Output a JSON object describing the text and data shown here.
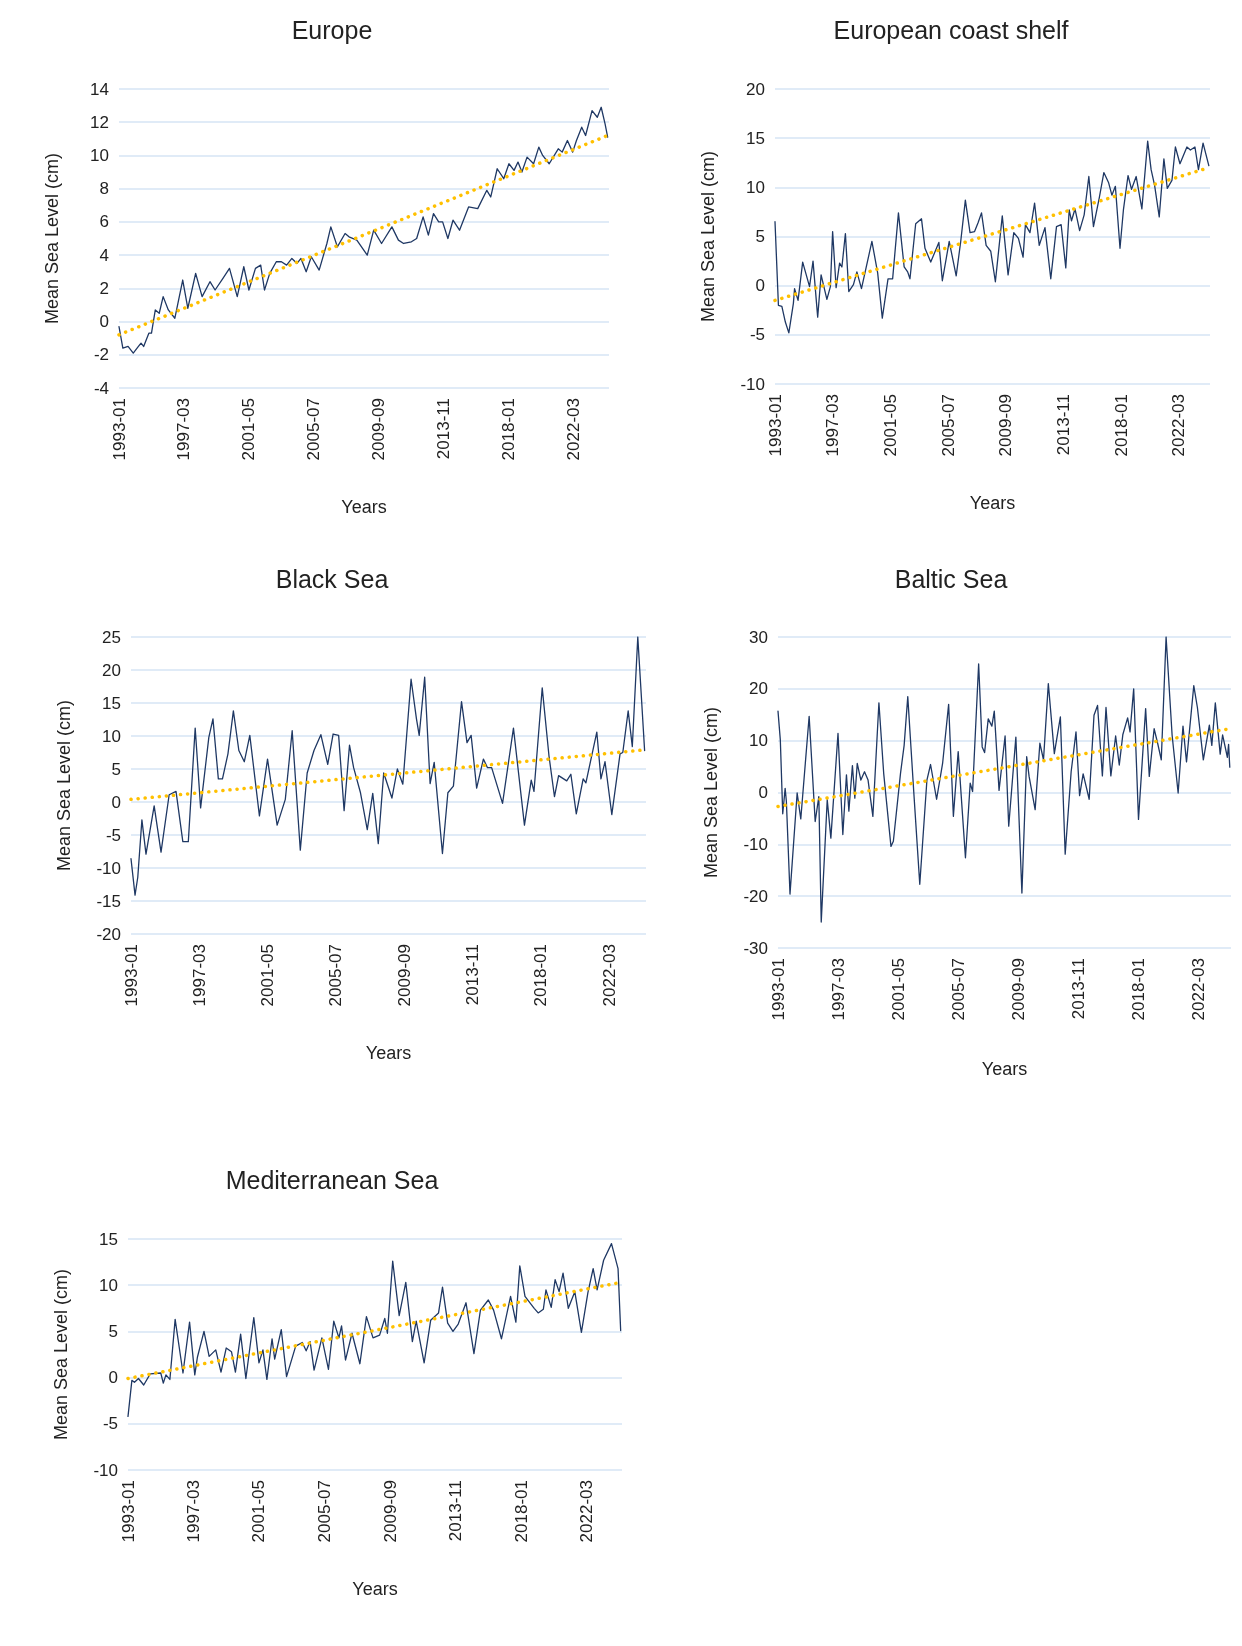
{
  "chart_data": [
    {
      "type": "line",
      "title": "Europe",
      "xlabel": "Years",
      "ylabel": "Mean Sea Level (cm)",
      "marker": "none",
      "grid": "y",
      "xlim": [
        "1993-01",
        "2024-06"
      ],
      "xticks": [
        "1993-01",
        "1997-03",
        "2001-05",
        "2005-07",
        "2009-09",
        "2013-11",
        "2018-01",
        "2022-03"
      ],
      "ylim": [
        -4,
        14
      ],
      "yticks": [
        -4,
        -2,
        0,
        2,
        4,
        6,
        8,
        10,
        12,
        14
      ],
      "series": [
        {
          "color": "#1f3864",
          "line_style": "solid",
          "x": [
            "1993-01",
            "1993-04",
            "1993-08",
            "1993-12",
            "1994-04",
            "1994-06",
            "1994-08",
            "1994-12",
            "1995-02",
            "1995-05",
            "1995-08",
            "1995-11",
            "1996-03",
            "1996-08",
            "1997-02",
            "1997-06",
            "1997-12",
            "1998-05",
            "1998-11",
            "1999-03",
            "1999-09",
            "2000-02",
            "2000-08",
            "2001-01",
            "2001-05",
            "2001-10",
            "2002-02",
            "2002-05",
            "2002-09",
            "2003-02",
            "2003-06",
            "2003-10",
            "2004-02",
            "2004-06",
            "2004-09",
            "2005-01",
            "2005-05",
            "2005-11",
            "2006-05",
            "2006-08",
            "2007-01",
            "2007-07",
            "2007-10",
            "2008-04",
            "2008-12",
            "2009-05",
            "2009-11",
            "2010-07",
            "2010-12",
            "2011-04",
            "2011-10",
            "2012-02",
            "2012-07",
            "2012-11",
            "2013-03",
            "2013-07",
            "2013-10",
            "2014-02",
            "2014-06",
            "2014-11",
            "2015-06",
            "2016-01",
            "2016-08",
            "2016-11",
            "2017-04",
            "2017-09",
            "2018-01",
            "2018-05",
            "2018-08",
            "2018-11",
            "2019-03",
            "2019-08",
            "2019-12",
            "2020-03",
            "2020-08",
            "2021-03",
            "2021-06",
            "2021-10",
            "2022-02",
            "2022-05",
            "2022-09",
            "2022-12",
            "2023-05",
            "2023-09",
            "2023-12",
            "2024-03",
            "2024-05"
          ],
          "values": [
            -0.3,
            -1.6,
            -1.5,
            -1.9,
            -1.5,
            -1.3,
            -1.5,
            -0.7,
            -0.7,
            0.7,
            0.5,
            1.5,
            0.7,
            0.2,
            2.5,
            0.8,
            2.9,
            1.5,
            2.4,
            1.9,
            2.6,
            3.2,
            1.5,
            3.3,
            1.9,
            3.2,
            3.4,
            1.9,
            2.9,
            3.6,
            3.6,
            3.4,
            3.8,
            3.5,
            3.8,
            3.0,
            3.9,
            3.1,
            4.7,
            5.7,
            4.5,
            5.3,
            5.1,
            4.9,
            4.0,
            5.5,
            4.7,
            5.7,
            4.9,
            4.7,
            4.8,
            5.0,
            6.3,
            5.2,
            6.5,
            6.0,
            6.0,
            5.0,
            6.1,
            5.5,
            6.9,
            6.8,
            7.9,
            7.5,
            9.2,
            8.6,
            9.5,
            9.1,
            9.6,
            9.0,
            9.9,
            9.5,
            10.5,
            10.0,
            9.5,
            10.4,
            10.2,
            10.9,
            10.2,
            10.9,
            11.7,
            11.2,
            12.7,
            12.3,
            12.9,
            11.9,
            11.1
          ]
        },
        {
          "color": "#ffc000",
          "line_style": "dotted",
          "x": [
            "1993-01",
            "2024-05"
          ],
          "values": [
            -0.8,
            11.2
          ]
        }
      ]
    },
    {
      "type": "line",
      "title": "European coast shelf",
      "xlabel": "Years",
      "ylabel": "Mean Sea Level (cm)",
      "marker": "none",
      "grid": "y",
      "xlim": [
        "1993-01",
        "2024-06"
      ],
      "xticks": [
        "1993-01",
        "1997-03",
        "2001-05",
        "2005-07",
        "2009-09",
        "2013-11",
        "2018-01",
        "2022-03"
      ],
      "ylim": [
        -10,
        20
      ],
      "yticks": [
        -10,
        -5,
        0,
        5,
        10,
        15,
        20
      ],
      "series": [
        {
          "color": "#1f3864",
          "line_style": "solid",
          "x": [
            "1993-01",
            "1993-04",
            "1993-07",
            "1993-10",
            "1994-01",
            "1994-05",
            "1994-06",
            "1994-09",
            "1995-01",
            "1995-07",
            "1995-10",
            "1996-02",
            "1996-05",
            "1996-10",
            "1997-01",
            "1997-03",
            "1997-06",
            "1997-09",
            "1997-11",
            "1998-02",
            "1998-05",
            "1998-09",
            "1998-12",
            "1999-04",
            "2000-01",
            "2000-06",
            "2000-10",
            "2001-03",
            "2001-07",
            "2001-12",
            "2002-05",
            "2002-08",
            "2002-10",
            "2003-03",
            "2003-08",
            "2003-11",
            "2004-04",
            "2004-11",
            "2005-02",
            "2005-08",
            "2006-02",
            "2006-06",
            "2006-10",
            "2007-02",
            "2007-06",
            "2007-09",
            "2007-12",
            "2008-04",
            "2008-08",
            "2008-12",
            "2009-06",
            "2009-11",
            "2010-04",
            "2010-08",
            "2010-12",
            "2011-02",
            "2011-06",
            "2011-10",
            "2012-02",
            "2012-07",
            "2012-12",
            "2013-05",
            "2013-09",
            "2014-01",
            "2014-04",
            "2014-06",
            "2014-09",
            "2015-01",
            "2015-05",
            "2015-09",
            "2016-01",
            "2016-06",
            "2016-10",
            "2017-02",
            "2017-05",
            "2017-08",
            "2017-12",
            "2018-03",
            "2018-07",
            "2018-10",
            "2019-02",
            "2019-07",
            "2019-12",
            "2020-03",
            "2020-06",
            "2020-10",
            "2021-02",
            "2021-05",
            "2021-09",
            "2021-12",
            "2022-04",
            "2022-10",
            "2023-01",
            "2023-05",
            "2023-08",
            "2023-12",
            "2024-05"
          ],
          "values": [
            6.5,
            -2.0,
            -2.1,
            -3.7,
            -4.8,
            -1.8,
            -0.3,
            -1.5,
            2.4,
            -0.1,
            2.5,
            -3.2,
            1.1,
            -1.4,
            -0.1,
            5.5,
            -0.2,
            2.3,
            1.9,
            5.3,
            -0.6,
            0.1,
            1.4,
            -0.3,
            4.5,
            1.3,
            -3.3,
            0.7,
            0.7,
            7.4,
            1.9,
            1.4,
            0.7,
            6.3,
            6.8,
            3.8,
            2.4,
            4.4,
            0.5,
            4.5,
            1.0,
            4.5,
            8.7,
            5.4,
            5.5,
            6.4,
            7.4,
            4.1,
            3.5,
            0.4,
            7.1,
            1.1,
            5.4,
            4.8,
            2.9,
            6.2,
            5.4,
            8.4,
            4.1,
            5.9,
            0.7,
            6.0,
            6.2,
            1.8,
            7.7,
            6.6,
            7.8,
            5.6,
            7.2,
            11.1,
            6.0,
            8.9,
            11.5,
            10.5,
            9.2,
            10.1,
            3.8,
            7.7,
            11.2,
            9.8,
            11.1,
            7.8,
            14.7,
            11.8,
            10.2,
            7.0,
            12.9,
            9.9,
            10.7,
            14.1,
            12.4,
            14.1,
            13.8,
            14.1,
            11.8,
            14.5,
            12.2
          ]
        },
        {
          "color": "#ffc000",
          "line_style": "dotted",
          "x": [
            "1993-01",
            "2024-05"
          ],
          "values": [
            -1.5,
            12.0
          ]
        }
      ]
    },
    {
      "type": "line",
      "title": "Black Sea",
      "xlabel": "Years",
      "ylabel": "Mean Sea Level (cm)",
      "marker": "none",
      "grid": "y",
      "xlim": [
        "1993-01",
        "2024-06"
      ],
      "xticks": [
        "1993-01",
        "1997-03",
        "2001-05",
        "2005-07",
        "2009-09",
        "2013-11",
        "2018-01",
        "2022-03"
      ],
      "ylim": [
        -20,
        25
      ],
      "yticks": [
        -20,
        -15,
        -10,
        -5,
        0,
        5,
        10,
        15,
        20,
        25
      ],
      "series": [
        {
          "color": "#1f3864",
          "line_style": "solid",
          "x": [
            "1993-01",
            "1993-04",
            "1993-06",
            "1993-09",
            "1993-12",
            "1994-06",
            "1994-11",
            "1995-05",
            "1995-10",
            "1996-03",
            "1996-07",
            "1996-12",
            "1997-04",
            "1997-10",
            "1998-01",
            "1998-05",
            "1998-08",
            "1998-12",
            "1999-04",
            "1999-08",
            "1999-12",
            "2000-04",
            "2000-11",
            "2001-05",
            "2001-12",
            "2002-06",
            "2002-11",
            "2003-05",
            "2003-10",
            "2004-03",
            "2004-08",
            "2005-01",
            "2005-05",
            "2005-09",
            "2006-01",
            "2006-05",
            "2006-08",
            "2007-01",
            "2007-06",
            "2007-10",
            "2008-02",
            "2008-06",
            "2008-12",
            "2009-04",
            "2009-08",
            "2010-02",
            "2010-06",
            "2010-08",
            "2010-12",
            "2011-04",
            "2011-07",
            "2012-01",
            "2012-05",
            "2012-09",
            "2013-03",
            "2013-07",
            "2013-10",
            "2014-02",
            "2014-07",
            "2014-10",
            "2015-01",
            "2015-09",
            "2016-05",
            "2017-01",
            "2017-06",
            "2017-08",
            "2018-02",
            "2018-07",
            "2018-11",
            "2019-02",
            "2019-08",
            "2019-11",
            "2020-03",
            "2020-08",
            "2020-10",
            "2021-06",
            "2021-09",
            "2021-12",
            "2022-05",
            "2022-11",
            "2023-01",
            "2023-05",
            "2023-08",
            "2023-12",
            "2024-05"
          ],
          "values": [
            -8.6,
            -14.1,
            -11.4,
            -2.7,
            -7.9,
            -0.6,
            -7.6,
            1.1,
            1.6,
            -6.0,
            -6.0,
            11.2,
            -0.9,
            9.8,
            12.6,
            3.5,
            3.5,
            7.3,
            13.8,
            7.8,
            6.1,
            10.1,
            -2.1,
            6.5,
            -3.5,
            0.4,
            10.8,
            -7.3,
            4.4,
            7.8,
            10.2,
            5.7,
            10.3,
            10.1,
            -1.3,
            8.6,
            5.2,
            1.4,
            -4.2,
            1.3,
            -6.3,
            4.4,
            0.6,
            5.0,
            2.7,
            18.6,
            12.6,
            10.1,
            18.9,
            2.8,
            6.0,
            -7.8,
            1.4,
            2.4,
            15.2,
            9.0,
            10.1,
            2.1,
            6.5,
            5.2,
            5.2,
            -0.2,
            11.2,
            -3.5,
            3.3,
            1.6,
            17.3,
            7.0,
            0.8,
            4.0,
            3.2,
            4.2,
            -1.8,
            3.5,
            2.9,
            10.6,
            3.5,
            6.1,
            -1.9,
            7.3,
            7.5,
            13.8,
            8.4,
            25.0,
            7.8
          ]
        },
        {
          "color": "#ffc000",
          "line_style": "dotted",
          "x": [
            "1993-01",
            "2024-05"
          ],
          "values": [
            0.4,
            7.9
          ]
        }
      ]
    },
    {
      "type": "line",
      "title": "Baltic Sea",
      "xlabel": "Years",
      "ylabel": "Mean Sea Level (cm)",
      "marker": "none",
      "grid": "y",
      "xlim": [
        "1993-01",
        "2024-06"
      ],
      "xticks": [
        "1993-01",
        "1997-03",
        "2001-05",
        "2005-07",
        "2009-09",
        "2013-11",
        "2018-01",
        "2022-03"
      ],
      "ylim": [
        -30,
        30
      ],
      "yticks": [
        -30,
        -20,
        -10,
        0,
        10,
        20,
        30
      ],
      "series": [
        {
          "color": "#1f3864",
          "line_style": "solid",
          "x": [
            "1993-01",
            "1993-03",
            "1993-05",
            "1993-07",
            "1993-08",
            "1993-11",
            "1994-05",
            "1994-08",
            "1995-03",
            "1995-08",
            "1995-11",
            "1996-01",
            "1996-06",
            "1996-09",
            "1997-03",
            "1997-07",
            "1997-10",
            "1997-12",
            "1998-03",
            "1998-05",
            "1998-07",
            "1998-10",
            "1999-01",
            "1999-04",
            "1999-08",
            "2000-01",
            "2000-05",
            "2000-11",
            "2001-01",
            "2001-07",
            "2001-10",
            "2002-01",
            "2002-06",
            "2002-11",
            "2003-05",
            "2003-08",
            "2004-01",
            "2004-06",
            "2004-11",
            "2005-03",
            "2005-07",
            "2006-01",
            "2006-05",
            "2006-07",
            "2006-12",
            "2007-03",
            "2007-05",
            "2007-08",
            "2007-11",
            "2008-01",
            "2008-05",
            "2008-10",
            "2009-01",
            "2009-07",
            "2009-12",
            "2010-04",
            "2010-06",
            "2010-11",
            "2011-03",
            "2011-06",
            "2011-10",
            "2012-03",
            "2012-08",
            "2012-12",
            "2013-05",
            "2013-09",
            "2013-12",
            "2014-03",
            "2014-08",
            "2014-12",
            "2015-03",
            "2015-07",
            "2015-10",
            "2016-02",
            "2016-06",
            "2016-09",
            "2016-12",
            "2017-04",
            "2017-06",
            "2017-09",
            "2018-01",
            "2018-07",
            "2018-10",
            "2019-02",
            "2019-05",
            "2019-08",
            "2019-12",
            "2020-05",
            "2020-10",
            "2021-02",
            "2021-05",
            "2021-11",
            "2022-02",
            "2022-07",
            "2022-12",
            "2023-02",
            "2023-05",
            "2023-09",
            "2023-11",
            "2024-03",
            "2024-04",
            "2024-05"
          ],
          "values": [
            15.7,
            10.1,
            -4.1,
            0.8,
            -1.7,
            -19.6,
            -0.1,
            -5.1,
            14.7,
            -5.6,
            -0.8,
            -25.0,
            -1.4,
            -8.8,
            11.4,
            -8.1,
            3.4,
            -3.6,
            5.2,
            -1.1,
            5.6,
            2.4,
            4.0,
            2.4,
            -4.6,
            17.3,
            3.7,
            -10.4,
            -9.4,
            3.7,
            9.1,
            18.5,
            0.2,
            -17.7,
            2.4,
            5.4,
            -1.3,
            5.6,
            17.0,
            -4.6,
            7.9,
            -12.6,
            1.8,
            0.2,
            24.8,
            8.8,
            7.7,
            14.2,
            12.8,
            15.7,
            0.4,
            10.9,
            -6.5,
            10.7,
            -19.4,
            6.9,
            3.1,
            -3.3,
            9.5,
            6.3,
            21.0,
            7.5,
            14.6,
            -11.9,
            4.0,
            11.7,
            -0.6,
            3.6,
            -1.3,
            14.9,
            16.8,
            3.2,
            16.4,
            3.2,
            10.9,
            5.3,
            11.2,
            14.4,
            11.7,
            20.0,
            -5.2,
            16.2,
            3.1,
            12.3,
            9.5,
            6.3,
            30.0,
            11.1,
            -0.1,
            12.8,
            5.9,
            20.6,
            16.4,
            6.3,
            13.0,
            9.1,
            17.3,
            7.4,
            11.1,
            6.8,
            9.3,
            4.9
          ]
        },
        {
          "color": "#ffc000",
          "line_style": "dotted",
          "x": [
            "1993-01",
            "2024-05"
          ],
          "values": [
            -2.7,
            12.3
          ]
        }
      ]
    },
    {
      "type": "line",
      "title": "Mediterranean Sea",
      "xlabel": "Years",
      "ylabel": "Mean Sea Level (cm)",
      "marker": "none",
      "grid": "y",
      "xlim": [
        "1993-01",
        "2024-06"
      ],
      "xticks": [
        "1993-01",
        "1997-03",
        "2001-05",
        "2005-07",
        "2009-09",
        "2013-11",
        "2018-01",
        "2022-03"
      ],
      "ylim": [
        -10,
        15
      ],
      "yticks": [
        -10,
        -5,
        0,
        5,
        10,
        15
      ],
      "series": [
        {
          "color": "#1f3864",
          "line_style": "solid",
          "x": [
            "1993-01",
            "1993-04",
            "1993-06",
            "1993-09",
            "1994-01",
            "1994-06",
            "1995-02",
            "1995-04",
            "1995-06",
            "1995-09",
            "1996-01",
            "1996-07",
            "1996-12",
            "1997-04",
            "1997-06",
            "1997-11",
            "1998-03",
            "1998-08",
            "1998-12",
            "1999-04",
            "1999-08",
            "1999-11",
            "2000-03",
            "2000-07",
            "2001-01",
            "2001-05",
            "2001-08",
            "2001-11",
            "2002-03",
            "2002-05",
            "2002-10",
            "2003-02",
            "2003-09",
            "2004-02",
            "2004-05",
            "2004-08",
            "2004-11",
            "2005-05",
            "2005-10",
            "2006-02",
            "2006-06",
            "2006-08",
            "2006-11",
            "2007-04",
            "2007-10",
            "2008-03",
            "2008-08",
            "2009-01",
            "2009-05",
            "2009-07",
            "2009-11",
            "2010-04",
            "2010-09",
            "2011-02",
            "2011-05",
            "2011-11",
            "2012-04",
            "2012-10",
            "2013-01",
            "2013-05",
            "2013-09",
            "2014-01",
            "2014-07",
            "2015-01",
            "2015-06",
            "2015-12",
            "2016-04",
            "2016-10",
            "2017-05",
            "2017-09",
            "2017-12",
            "2018-04",
            "2018-11",
            "2019-02",
            "2019-06",
            "2019-08",
            "2019-12",
            "2020-03",
            "2020-06",
            "2020-09",
            "2021-01",
            "2021-06",
            "2021-11",
            "2022-04",
            "2022-08",
            "2022-11",
            "2023-04",
            "2023-10",
            "2024-03",
            "2024-05"
          ],
          "values": [
            -4.2,
            -0.3,
            -0.5,
            -0.1,
            -0.8,
            0.4,
            0.5,
            -0.6,
            0.3,
            -0.2,
            6.3,
            0.5,
            6.0,
            0.3,
            2.2,
            5.0,
            2.3,
            3.0,
            0.6,
            3.2,
            2.8,
            0.6,
            4.7,
            -0.1,
            6.5,
            1.6,
            3.0,
            -0.2,
            4.2,
            2.0,
            5.2,
            0.1,
            3.4,
            3.8,
            2.9,
            3.9,
            0.8,
            4.3,
            0.9,
            6.1,
            4.3,
            5.6,
            1.9,
            4.8,
            1.5,
            6.6,
            4.3,
            4.6,
            6.4,
            4.8,
            12.6,
            6.7,
            10.3,
            3.9,
            6.1,
            1.6,
            6.2,
            7.0,
            9.8,
            5.9,
            5.0,
            5.8,
            8.1,
            2.6,
            7.3,
            8.4,
            7.3,
            4.2,
            8.8,
            6.0,
            12.1,
            8.8,
            7.5,
            7.0,
            7.4,
            9.5,
            7.6,
            10.6,
            9.3,
            11.3,
            7.5,
            9.3,
            4.9,
            9.2,
            11.8,
            9.5,
            12.7,
            14.5,
            11.8,
            5.1
          ]
        },
        {
          "color": "#ffc000",
          "line_style": "dotted",
          "x": [
            "1993-01",
            "2024-05"
          ],
          "values": [
            -0.1,
            10.3
          ]
        }
      ]
    }
  ]
}
